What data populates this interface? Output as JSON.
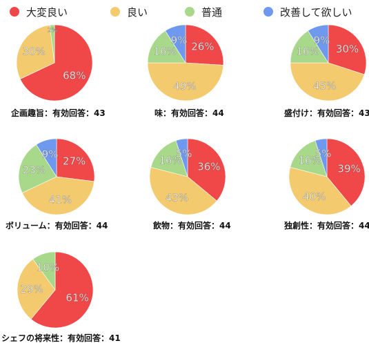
{
  "legend": [
    {
      "label": "大変良い",
      "color": "#f04848"
    },
    {
      "label": "良い",
      "color": "#f3cb6e"
    },
    {
      "label": "普通",
      "color": "#a8d98a"
    },
    {
      "label": "改善して欲しい",
      "color": "#6f98ef"
    }
  ],
  "chart_data": [
    {
      "type": "pie",
      "title": "企画趣旨：有効回答：43",
      "categories": [
        "大変良い",
        "良い",
        "普通",
        "改善して欲しい"
      ],
      "values": [
        68,
        30,
        2,
        0
      ],
      "labels": [
        "68%",
        "30%",
        "2%",
        ""
      ]
    },
    {
      "type": "pie",
      "title": "味：有効回答：44",
      "categories": [
        "大変良い",
        "良い",
        "普通",
        "改善して欲しい"
      ],
      "values": [
        26,
        49,
        16,
        9
      ],
      "labels": [
        "26%",
        "49%",
        "16%",
        "9%"
      ]
    },
    {
      "type": "pie",
      "title": "盛付け：有効回答：43",
      "categories": [
        "大変良い",
        "良い",
        "普通",
        "改善して欲しい"
      ],
      "values": [
        30,
        45,
        16,
        9
      ],
      "labels": [
        "30%",
        "45%",
        "16%",
        "9%"
      ]
    },
    {
      "type": "pie",
      "title": "ボリューム：有効回答：44",
      "categories": [
        "大変良い",
        "良い",
        "普通",
        "改善して欲しい"
      ],
      "values": [
        27,
        41,
        23,
        9
      ],
      "labels": [
        "27%",
        "41%",
        "23%",
        "9%"
      ]
    },
    {
      "type": "pie",
      "title": "飲物：有効回答：44",
      "categories": [
        "大変良い",
        "良い",
        "普通",
        "改善して欲しい"
      ],
      "values": [
        36,
        43,
        16,
        5
      ],
      "labels": [
        "36%",
        "43%",
        "16%",
        "5%"
      ]
    },
    {
      "type": "pie",
      "title": "独創性：有効回答：44",
      "categories": [
        "大変良い",
        "良い",
        "普通",
        "改善して欲しい"
      ],
      "values": [
        39,
        40,
        16,
        5
      ],
      "labels": [
        "39%",
        "40%",
        "16%",
        "5%"
      ]
    },
    {
      "type": "pie",
      "title": "シェフの将来性：有効回答：41",
      "categories": [
        "大変良い",
        "良い",
        "普通",
        "改善して欲しい"
      ],
      "values": [
        61,
        29,
        10,
        0
      ],
      "labels": [
        "61%",
        "29%",
        "10%",
        ""
      ]
    }
  ]
}
